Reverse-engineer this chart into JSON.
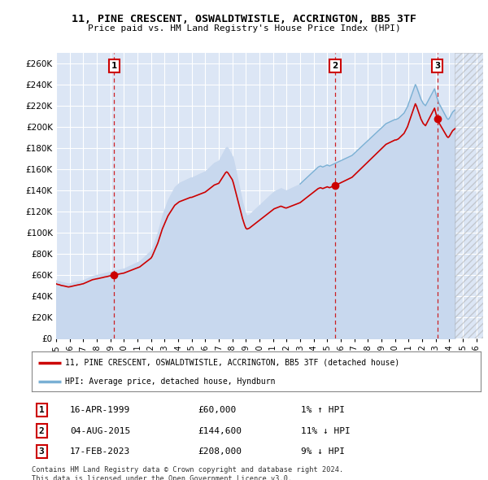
{
  "title": "11, PINE CRESCENT, OSWALDTWISTLE, ACCRINGTON, BB5 3TF",
  "subtitle": "Price paid vs. HM Land Registry's House Price Index (HPI)",
  "xlim_start": 1995.0,
  "xlim_end": 2026.5,
  "ylim": [
    0,
    270000
  ],
  "yticks": [
    0,
    20000,
    40000,
    60000,
    80000,
    100000,
    120000,
    140000,
    160000,
    180000,
    200000,
    220000,
    240000,
    260000
  ],
  "background_color": "#ffffff",
  "plot_bg_color": "#dce6f5",
  "grid_color": "#ffffff",
  "sale_color": "#cc0000",
  "hpi_color": "#7ab0d4",
  "hpi_fill_color": "#dce6f5",
  "legend_sale": "11, PINE CRESCENT, OSWALDTWISTLE, ACCRINGTON, BB5 3TF (detached house)",
  "legend_hpi": "HPI: Average price, detached house, Hyndburn",
  "transactions": [
    {
      "num": 1,
      "date": "16-APR-1999",
      "price": 60000,
      "year": 1999.29
    },
    {
      "num": 2,
      "date": "04-AUG-2015",
      "price": 144600,
      "year": 2015.59
    },
    {
      "num": 3,
      "date": "17-FEB-2023",
      "price": 208000,
      "year": 2023.12
    }
  ],
  "footer": "Contains HM Land Registry data © Crown copyright and database right 2024.\nThis data is licensed under the Open Government Licence v3.0.",
  "hpi_data": {
    "years": [
      1995.0,
      1995.083,
      1995.167,
      1995.25,
      1995.333,
      1995.417,
      1995.5,
      1995.583,
      1995.667,
      1995.75,
      1995.833,
      1995.917,
      1996.0,
      1996.083,
      1996.167,
      1996.25,
      1996.333,
      1996.417,
      1996.5,
      1996.583,
      1996.667,
      1996.75,
      1996.833,
      1996.917,
      1997.0,
      1997.083,
      1997.167,
      1997.25,
      1997.333,
      1997.417,
      1997.5,
      1997.583,
      1997.667,
      1997.75,
      1997.833,
      1997.917,
      1998.0,
      1998.083,
      1998.167,
      1998.25,
      1998.333,
      1998.417,
      1998.5,
      1998.583,
      1998.667,
      1998.75,
      1998.833,
      1998.917,
      1999.0,
      1999.083,
      1999.167,
      1999.25,
      1999.333,
      1999.417,
      1999.5,
      1999.583,
      1999.667,
      1999.75,
      1999.833,
      1999.917,
      2000.0,
      2000.083,
      2000.167,
      2000.25,
      2000.333,
      2000.417,
      2000.5,
      2000.583,
      2000.667,
      2000.75,
      2000.833,
      2000.917,
      2001.0,
      2001.083,
      2001.167,
      2001.25,
      2001.333,
      2001.417,
      2001.5,
      2001.583,
      2001.667,
      2001.75,
      2001.833,
      2001.917,
      2002.0,
      2002.083,
      2002.167,
      2002.25,
      2002.333,
      2002.417,
      2002.5,
      2002.583,
      2002.667,
      2002.75,
      2002.833,
      2002.917,
      2003.0,
      2003.083,
      2003.167,
      2003.25,
      2003.333,
      2003.417,
      2003.5,
      2003.583,
      2003.667,
      2003.75,
      2003.833,
      2003.917,
      2004.0,
      2004.083,
      2004.167,
      2004.25,
      2004.333,
      2004.417,
      2004.5,
      2004.583,
      2004.667,
      2004.75,
      2004.833,
      2004.917,
      2005.0,
      2005.083,
      2005.167,
      2005.25,
      2005.333,
      2005.417,
      2005.5,
      2005.583,
      2005.667,
      2005.75,
      2005.833,
      2005.917,
      2006.0,
      2006.083,
      2006.167,
      2006.25,
      2006.333,
      2006.417,
      2006.5,
      2006.583,
      2006.667,
      2006.75,
      2006.833,
      2006.917,
      2007.0,
      2007.083,
      2007.167,
      2007.25,
      2007.333,
      2007.417,
      2007.5,
      2007.583,
      2007.667,
      2007.75,
      2007.833,
      2007.917,
      2008.0,
      2008.083,
      2008.167,
      2008.25,
      2008.333,
      2008.417,
      2008.5,
      2008.583,
      2008.667,
      2008.75,
      2008.833,
      2008.917,
      2009.0,
      2009.083,
      2009.167,
      2009.25,
      2009.333,
      2009.417,
      2009.5,
      2009.583,
      2009.667,
      2009.75,
      2009.833,
      2009.917,
      2010.0,
      2010.083,
      2010.167,
      2010.25,
      2010.333,
      2010.417,
      2010.5,
      2010.583,
      2010.667,
      2010.75,
      2010.833,
      2010.917,
      2011.0,
      2011.083,
      2011.167,
      2011.25,
      2011.333,
      2011.417,
      2011.5,
      2011.583,
      2011.667,
      2011.75,
      2011.833,
      2011.917,
      2012.0,
      2012.083,
      2012.167,
      2012.25,
      2012.333,
      2012.417,
      2012.5,
      2012.583,
      2012.667,
      2012.75,
      2012.833,
      2012.917,
      2013.0,
      2013.083,
      2013.167,
      2013.25,
      2013.333,
      2013.417,
      2013.5,
      2013.583,
      2013.667,
      2013.75,
      2013.833,
      2013.917,
      2014.0,
      2014.083,
      2014.167,
      2014.25,
      2014.333,
      2014.417,
      2014.5,
      2014.583,
      2014.667,
      2014.75,
      2014.833,
      2014.917,
      2015.0,
      2015.083,
      2015.167,
      2015.25,
      2015.333,
      2015.417,
      2015.5,
      2015.583,
      2015.667,
      2015.75,
      2015.833,
      2015.917,
      2016.0,
      2016.083,
      2016.167,
      2016.25,
      2016.333,
      2016.417,
      2016.5,
      2016.583,
      2016.667,
      2016.75,
      2016.833,
      2016.917,
      2017.0,
      2017.083,
      2017.167,
      2017.25,
      2017.333,
      2017.417,
      2017.5,
      2017.583,
      2017.667,
      2017.75,
      2017.833,
      2017.917,
      2018.0,
      2018.083,
      2018.167,
      2018.25,
      2018.333,
      2018.417,
      2018.5,
      2018.583,
      2018.667,
      2018.75,
      2018.833,
      2018.917,
      2019.0,
      2019.083,
      2019.167,
      2019.25,
      2019.333,
      2019.417,
      2019.5,
      2019.583,
      2019.667,
      2019.75,
      2019.833,
      2019.917,
      2020.0,
      2020.083,
      2020.167,
      2020.25,
      2020.333,
      2020.417,
      2020.5,
      2020.583,
      2020.667,
      2020.75,
      2020.833,
      2020.917,
      2021.0,
      2021.083,
      2021.167,
      2021.25,
      2021.333,
      2021.417,
      2021.5,
      2021.583,
      2021.667,
      2021.75,
      2021.833,
      2021.917,
      2022.0,
      2022.083,
      2022.167,
      2022.25,
      2022.333,
      2022.417,
      2022.5,
      2022.583,
      2022.667,
      2022.75,
      2022.833,
      2022.917,
      2023.0,
      2023.083,
      2023.167,
      2023.25,
      2023.333,
      2023.417,
      2023.5,
      2023.583,
      2023.667,
      2023.75,
      2023.833,
      2023.917,
      2024.0,
      2024.083,
      2024.167,
      2024.25,
      2024.333,
      2024.417
    ],
    "values": [
      55000,
      54500,
      54200,
      54000,
      53500,
      53200,
      53000,
      52800,
      52500,
      52200,
      52000,
      51800,
      52000,
      52200,
      52500,
      52800,
      53000,
      53300,
      53500,
      53800,
      54000,
      54200,
      54500,
      54800,
      55000,
      55500,
      56000,
      56500,
      57000,
      57500,
      58000,
      58500,
      59000,
      59300,
      59500,
      59800,
      60000,
      60200,
      60500,
      60800,
      61000,
      61200,
      61500,
      61800,
      62000,
      62200,
      62500,
      62800,
      63000,
      63200,
      63500,
      63800,
      64000,
      64300,
      64500,
      64800,
      65000,
      65300,
      65500,
      65800,
      66000,
      66500,
      67000,
      67500,
      68000,
      68500,
      69000,
      69500,
      70000,
      70500,
      71000,
      71500,
      72000,
      72500,
      73000,
      74000,
      75000,
      76000,
      77000,
      78000,
      79000,
      80000,
      81000,
      82000,
      83000,
      85000,
      88000,
      91000,
      94000,
      97000,
      100000,
      104000,
      108000,
      112000,
      116000,
      119000,
      122000,
      125000,
      128000,
      131000,
      133000,
      135000,
      137000,
      139000,
      141000,
      143000,
      144000,
      145000,
      146000,
      147000,
      147500,
      148000,
      148500,
      149000,
      149500,
      150000,
      150500,
      151000,
      151500,
      152000,
      152000,
      152500,
      153000,
      153500,
      154000,
      154500,
      155000,
      155500,
      156000,
      156500,
      157000,
      157500,
      158000,
      159000,
      160000,
      161000,
      162000,
      163000,
      164000,
      165000,
      166000,
      166500,
      167000,
      167500,
      168000,
      170000,
      172000,
      174000,
      176000,
      178000,
      180000,
      181000,
      180000,
      178000,
      176000,
      174000,
      172000,
      168000,
      163000,
      158000,
      153000,
      148000,
      143000,
      138000,
      133000,
      128000,
      124000,
      120000,
      117000,
      116000,
      116500,
      117000,
      118000,
      119000,
      120000,
      121000,
      122000,
      123000,
      124000,
      125000,
      126000,
      127000,
      128000,
      129000,
      130000,
      131000,
      132000,
      133000,
      134000,
      135000,
      136000,
      137000,
      138000,
      139000,
      139500,
      140000,
      140500,
      141000,
      141500,
      142000,
      141500,
      141000,
      140500,
      140000,
      140000,
      140500,
      141000,
      141500,
      142000,
      142500,
      143000,
      143500,
      144000,
      144500,
      145000,
      145500,
      146000,
      147000,
      148000,
      149000,
      150000,
      151000,
      152000,
      153000,
      154000,
      155000,
      156000,
      157000,
      158000,
      159000,
      160000,
      161000,
      162000,
      162500,
      163000,
      162500,
      162000,
      162500,
      163000,
      163500,
      164000,
      163500,
      163000,
      163500,
      164000,
      164500,
      165000,
      165500,
      166000,
      166500,
      167000,
      167500,
      168000,
      168500,
      169000,
      169500,
      170000,
      170500,
      171000,
      171500,
      172000,
      172500,
      173000,
      174000,
      175000,
      176000,
      177000,
      178000,
      179000,
      180000,
      181000,
      182000,
      183000,
      184000,
      185000,
      186000,
      187000,
      188000,
      189000,
      190000,
      191000,
      192000,
      193000,
      194000,
      195000,
      196000,
      197000,
      198000,
      199000,
      200000,
      201000,
      202000,
      203000,
      203500,
      204000,
      204500,
      205000,
      205500,
      206000,
      206500,
      207000,
      207000,
      207500,
      208000,
      209000,
      210000,
      211000,
      212000,
      213000,
      215000,
      217000,
      219000,
      222000,
      225000,
      228000,
      231000,
      234000,
      237000,
      240000,
      238000,
      235000,
      232000,
      229000,
      226000,
      224000,
      222000,
      221000,
      220000,
      222000,
      224000,
      226000,
      228000,
      230000,
      232000,
      234000,
      236000,
      232000,
      228000,
      225000,
      222000,
      220000,
      218000,
      216000,
      214000,
      212000,
      210000,
      208000,
      207000,
      208000,
      210000,
      212000,
      214000,
      215000,
      216000
    ]
  },
  "hpi_visible_from": 2013.0,
  "future_hatch_start": 2024.42,
  "xticks": [
    1995,
    1996,
    1997,
    1998,
    1999,
    2000,
    2001,
    2002,
    2003,
    2004,
    2005,
    2006,
    2007,
    2008,
    2009,
    2010,
    2011,
    2012,
    2013,
    2014,
    2015,
    2016,
    2017,
    2018,
    2019,
    2020,
    2021,
    2022,
    2023,
    2024,
    2025,
    2026
  ]
}
